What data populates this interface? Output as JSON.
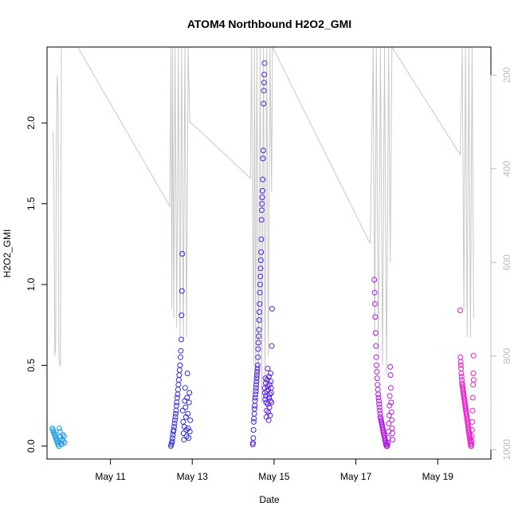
{
  "chart_data": {
    "type": "scatter",
    "title": "ATOM4 Northbound H2O2_GMI",
    "xlabel": "Date",
    "ylabel": "H2O2_GMI",
    "x_ticks": [
      "May 11",
      "May 13",
      "May 15",
      "May 17",
      "May 19"
    ],
    "x_tick_days": [
      11,
      13,
      15,
      17,
      19
    ],
    "xlim_days": [
      9.45,
      20.3
    ],
    "ylim": [
      -0.08,
      2.47
    ],
    "y_ticks": [
      0.0,
      0.5,
      1.0,
      1.5,
      2.0
    ],
    "y_tick_labels": [
      "0.0",
      "0.5",
      "1.0",
      "1.5",
      "2.0"
    ],
    "right_axis": {
      "label": "",
      "ticks": [
        200,
        400,
        600,
        800,
        1000
      ],
      "lim": [
        1020,
        140
      ],
      "color": "#bdbdbd"
    },
    "grid": false,
    "legend": "none",
    "marker": "open-circle",
    "color_scale": [
      "#1aa6e6",
      "#3b3bf0",
      "#2a1fd8",
      "#7f1fe6",
      "#b41ce0",
      "#f01ec8"
    ],
    "flights": [
      {
        "start": 9.58,
        "end": 9.88,
        "values": [
          0.11,
          0.1,
          0.09,
          0.08,
          0.07,
          0.06,
          0.05,
          0.04,
          0.03,
          0.02,
          0.01,
          0.0,
          0.11,
          0.09,
          0.06,
          0.02,
          0.01,
          0.04,
          0.07,
          0.03,
          0.06,
          0.02
        ]
      },
      {
        "start": 12.48,
        "end": 12.95,
        "values": [
          0.0,
          0.01,
          0.02,
          0.03,
          0.05,
          0.07,
          0.09,
          0.1,
          0.12,
          0.14,
          0.16,
          0.18,
          0.2,
          0.22,
          0.25,
          0.27,
          0.3,
          0.32,
          0.35,
          0.38,
          0.41,
          0.44,
          0.47,
          0.5,
          0.55,
          0.59,
          0.66,
          0.81,
          0.96,
          1.19,
          0.22,
          0.15,
          0.08,
          0.04,
          0.12,
          0.28,
          0.36,
          0.24,
          0.18,
          0.1,
          0.06,
          0.3,
          0.45,
          0.2,
          0.11,
          0.05,
          0.27,
          0.33,
          0.09,
          0.16
        ]
      },
      {
        "start": 14.48,
        "end": 14.95,
        "values": [
          0.01,
          0.02,
          0.05,
          0.1,
          0.15,
          0.17,
          0.2,
          0.23,
          0.25,
          0.28,
          0.3,
          0.32,
          0.34,
          0.36,
          0.38,
          0.4,
          0.42,
          0.44,
          0.46,
          0.48,
          0.5,
          0.55,
          0.6,
          0.64,
          0.68,
          0.72,
          0.78,
          0.83,
          0.88,
          0.95,
          1.0,
          1.05,
          1.1,
          1.15,
          1.2,
          1.28,
          1.4,
          1.46,
          1.5,
          1.54,
          1.58,
          1.65,
          1.78,
          1.83,
          2.12,
          2.2,
          2.25,
          2.3,
          2.37,
          0.36,
          0.33,
          0.29,
          0.42,
          0.39,
          0.31,
          0.27,
          0.18,
          0.22,
          0.34,
          0.41,
          0.37,
          0.48,
          0.26,
          0.35,
          0.21,
          0.16,
          0.43,
          0.3,
          0.24,
          0.38,
          0.32,
          0.19,
          0.28,
          0.45,
          0.4,
          0.36,
          0.33,
          0.27,
          0.62,
          0.85
        ]
      },
      {
        "start": 17.45,
        "end": 17.9,
        "values": [
          1.03,
          0.95,
          0.88,
          0.8,
          0.7,
          0.62,
          0.55,
          0.5,
          0.46,
          0.42,
          0.38,
          0.35,
          0.32,
          0.3,
          0.28,
          0.26,
          0.24,
          0.22,
          0.2,
          0.18,
          0.17,
          0.16,
          0.15,
          0.14,
          0.13,
          0.12,
          0.11,
          0.1,
          0.09,
          0.08,
          0.07,
          0.06,
          0.05,
          0.04,
          0.03,
          0.02,
          0.01,
          0.01,
          0.0,
          0.0,
          0.0,
          0.01,
          0.02,
          0.05,
          0.09,
          0.14,
          0.19,
          0.25,
          0.31,
          0.49,
          0.44,
          0.36,
          0.27,
          0.21,
          0.16,
          0.11,
          0.08,
          0.04
        ]
      },
      {
        "start": 19.55,
        "end": 19.88,
        "values": [
          0.84,
          0.55,
          0.52,
          0.5,
          0.48,
          0.45,
          0.43,
          0.41,
          0.39,
          0.38,
          0.37,
          0.36,
          0.35,
          0.34,
          0.33,
          0.32,
          0.31,
          0.3,
          0.29,
          0.28,
          0.27,
          0.26,
          0.25,
          0.24,
          0.23,
          0.22,
          0.21,
          0.2,
          0.19,
          0.18,
          0.17,
          0.16,
          0.15,
          0.14,
          0.13,
          0.12,
          0.11,
          0.1,
          0.09,
          0.08,
          0.07,
          0.06,
          0.05,
          0.04,
          0.03,
          0.02,
          0.01,
          0.0,
          0.0,
          0.01,
          0.03,
          0.06,
          0.1,
          0.15,
          0.22,
          0.3,
          0.38,
          0.45,
          0.56,
          0.41
        ]
      }
    ],
    "pressure_trace": [
      [
        9.6,
        320
      ],
      [
        9.62,
        430
      ],
      [
        9.64,
        800
      ],
      [
        9.66,
        780
      ],
      [
        9.68,
        340
      ],
      [
        9.7,
        200
      ],
      [
        9.72,
        250
      ],
      [
        9.74,
        800
      ],
      [
        9.76,
        820
      ],
      [
        9.78,
        820
      ],
      [
        9.8,
        140
      ],
      [
        9.82,
        140
      ],
      [
        10.2,
        140
      ],
      [
        12.45,
        480
      ],
      [
        12.48,
        140
      ],
      [
        12.5,
        700
      ],
      [
        12.52,
        140
      ],
      [
        12.55,
        720
      ],
      [
        12.58,
        140
      ],
      [
        12.62,
        740
      ],
      [
        12.66,
        140
      ],
      [
        12.7,
        760
      ],
      [
        12.74,
        140
      ],
      [
        12.78,
        770
      ],
      [
        12.82,
        140
      ],
      [
        12.86,
        760
      ],
      [
        12.9,
        140
      ],
      [
        12.94,
        300
      ],
      [
        13.2,
        320
      ],
      [
        14.42,
        420
      ],
      [
        14.45,
        140
      ],
      [
        14.5,
        820
      ],
      [
        14.52,
        140
      ],
      [
        14.55,
        850
      ],
      [
        14.58,
        140
      ],
      [
        14.62,
        880
      ],
      [
        14.66,
        140
      ],
      [
        14.7,
        900
      ],
      [
        14.74,
        140
      ],
      [
        14.78,
        860
      ],
      [
        14.82,
        140
      ],
      [
        14.86,
        800
      ],
      [
        14.9,
        140
      ],
      [
        14.94,
        450
      ],
      [
        14.96,
        140
      ],
      [
        17.35,
        560
      ],
      [
        17.42,
        140
      ],
      [
        17.46,
        760
      ],
      [
        17.5,
        140
      ],
      [
        17.55,
        800
      ],
      [
        17.6,
        140
      ],
      [
        17.65,
        820
      ],
      [
        17.7,
        140
      ],
      [
        17.75,
        840
      ],
      [
        17.8,
        140
      ],
      [
        17.84,
        600
      ],
      [
        17.88,
        140
      ],
      [
        19.55,
        370
      ],
      [
        19.6,
        140
      ],
      [
        19.64,
        700
      ],
      [
        19.68,
        140
      ],
      [
        19.72,
        760
      ],
      [
        19.76,
        140
      ],
      [
        19.8,
        760
      ],
      [
        19.84,
        140
      ],
      [
        19.88,
        720
      ]
    ]
  }
}
